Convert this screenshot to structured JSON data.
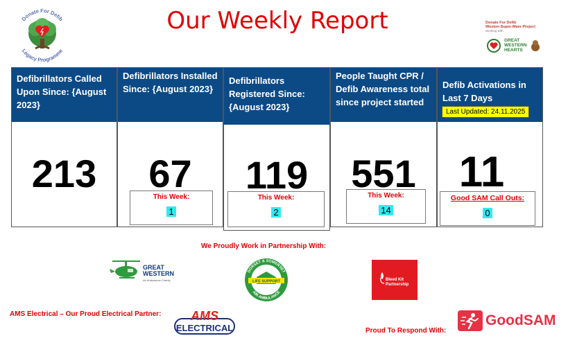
{
  "header": {
    "title": "Our Weekly Report",
    "left_logo_text": "Donate For Defib Legacy Programme",
    "right_logo_line1": "Donate For Defib",
    "right_logo_line2": "Weston-Super-Mare Project",
    "right_logo_line3": "Working with",
    "right_logo_brand": "GREAT WESTERN HEARTS"
  },
  "cards": [
    {
      "heading": "Defibrillators Called Upon Since: {August 2023}",
      "value": "213"
    },
    {
      "heading": "Defibrillators Installed Since: {August 2023}",
      "value": "67",
      "sub_label": "This Week:",
      "sub_value": "1"
    },
    {
      "heading": "Defibrillators Registered Since: {August 2023}",
      "value": "119",
      "sub_label": "This Week:",
      "sub_value": "2"
    },
    {
      "heading": "People Taught CPR / Defib Awareness total since project started",
      "value": "551",
      "sub_label": "This Week:",
      "sub_value": "14"
    },
    {
      "heading": "Defib Activations in Last 7 Days",
      "value": "11",
      "sub_label": "Good SAM Call Outs:",
      "sub_value": "0",
      "updated": "Last Updated: 24.11.2025"
    }
  ],
  "partners": {
    "title": "We Proudly Work in Partnership With:",
    "great_western": "GREAT WESTERN",
    "great_western_sub": "Air Ambulance Charity",
    "dorset_somerset": "DORSET & SOMERSET",
    "life_support": "LIFE SUPPORT",
    "air_ambulance": "AIR AMBULANCE",
    "bleed_kit": "Bleed Kit Partnership",
    "ams_text": "AMS Electrical – Our Proud Electrical Partner:",
    "ams_logo_1": "AMS",
    "ams_logo_2": "ELECTRICAL",
    "respond_text": "Proud To Respond With:",
    "goodsam": "GoodSAM"
  },
  "colors": {
    "header_blue": "#0c4a86",
    "accent_red": "#e00000",
    "highlight_cyan": "#33e8f0",
    "highlight_yellow": "#ffff00"
  }
}
